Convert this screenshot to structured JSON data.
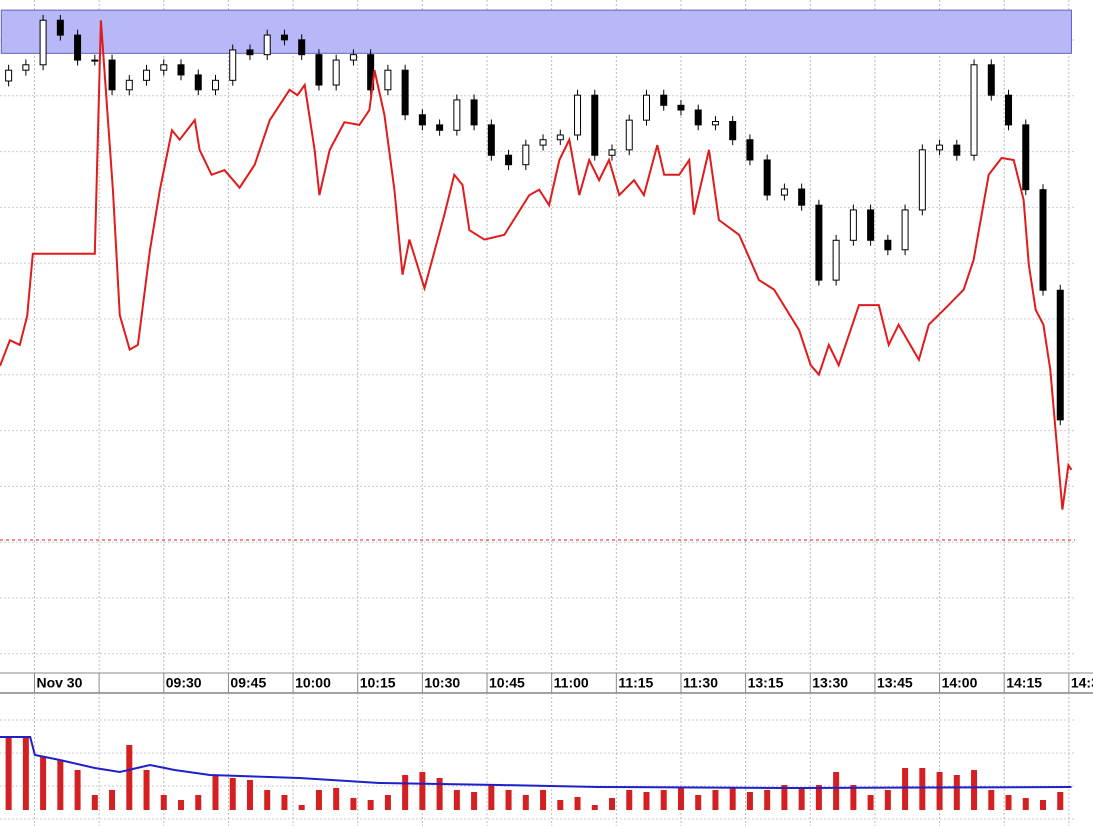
{
  "chart_data": [
    {
      "type": "candlestick",
      "xlim": [
        -8,
        245.6
      ],
      "ylim": [
        0,
        100
      ],
      "grid": true,
      "xticks": [
        {
          "value": 0,
          "label": "Nov 30"
        },
        {
          "value": 15,
          "label": null
        },
        {
          "value": 30,
          "label": "09:30"
        },
        {
          "value": 45,
          "label": "09:45"
        },
        {
          "value": 60,
          "label": "10:00"
        },
        {
          "value": 75,
          "label": "10:15"
        },
        {
          "value": 90,
          "label": "10:30"
        },
        {
          "value": 105,
          "label": "10:45"
        },
        {
          "value": 120,
          "label": "11:00"
        },
        {
          "value": 135,
          "label": "11:15"
        },
        {
          "value": 150,
          "label": "11:30"
        },
        {
          "value": 165,
          "label": "13:15"
        },
        {
          "value": 180,
          "label": "13:30"
        },
        {
          "value": 195,
          "label": "13:45"
        },
        {
          "value": 210,
          "label": "14:00"
        },
        {
          "value": 225,
          "label": "14:15"
        },
        {
          "value": 240,
          "label": "14:3"
        }
      ],
      "x": [
        -6,
        -2,
        2,
        6,
        10,
        14,
        18,
        22,
        26,
        30,
        34,
        38,
        42,
        46,
        50,
        54,
        58,
        62,
        66,
        70,
        74,
        78,
        82,
        86,
        90,
        94,
        98,
        102,
        106,
        110,
        114,
        118,
        122,
        126,
        130,
        134,
        138,
        142,
        146,
        150,
        154,
        158,
        162,
        166,
        170,
        174,
        178,
        182,
        186,
        190,
        194,
        198,
        202,
        206,
        210,
        214,
        218,
        222,
        226,
        230,
        234,
        238
      ],
      "open": [
        88.0,
        89.6,
        90.4,
        97.0,
        94.8,
        91.1,
        91.1,
        86.7,
        88.1,
        89.6,
        90.4,
        88.9,
        86.7,
        88.1,
        92.6,
        91.9,
        94.8,
        94.1,
        91.9,
        87.4,
        91.1,
        91.9,
        86.7,
        89.6,
        83.0,
        81.5,
        80.7,
        85.2,
        81.5,
        77.0,
        75.6,
        78.5,
        79.3,
        80.0,
        85.9,
        77.0,
        77.8,
        82.2,
        85.9,
        84.4,
        83.7,
        81.5,
        82.0,
        79.3,
        76.3,
        71.1,
        72.0,
        69.6,
        58.5,
        64.4,
        68.9,
        64.4,
        63.0,
        68.9,
        77.8,
        78.5,
        77.0,
        90.4,
        85.9,
        81.5,
        71.9,
        57.0
      ],
      "high": [
        90.4,
        91.2,
        97.8,
        97.8,
        95.6,
        91.9,
        91.9,
        88.9,
        90.4,
        91.2,
        91.2,
        89.7,
        88.9,
        93.4,
        93.4,
        95.6,
        95.6,
        94.9,
        92.7,
        91.9,
        92.7,
        92.7,
        90.4,
        90.4,
        83.8,
        82.3,
        86.0,
        86.0,
        82.3,
        77.8,
        79.3,
        80.1,
        80.8,
        86.7,
        86.7,
        78.6,
        83.0,
        86.7,
        86.7,
        85.2,
        84.5,
        82.8,
        82.8,
        80.1,
        77.1,
        72.8,
        72.8,
        70.4,
        65.2,
        69.7,
        69.7,
        65.2,
        69.7,
        78.6,
        79.3,
        79.3,
        91.2,
        91.2,
        86.7,
        82.3,
        72.7,
        57.8
      ],
      "low": [
        87.2,
        88.8,
        89.6,
        94.0,
        90.3,
        90.3,
        85.9,
        85.9,
        87.3,
        88.8,
        88.1,
        85.9,
        85.9,
        87.3,
        91.1,
        91.1,
        93.3,
        91.1,
        86.6,
        86.6,
        90.3,
        85.9,
        85.9,
        82.2,
        80.7,
        79.9,
        79.9,
        80.7,
        76.2,
        74.8,
        74.8,
        77.7,
        78.5,
        79.2,
        76.2,
        76.2,
        77.0,
        81.4,
        83.6,
        82.9,
        80.7,
        80.7,
        78.5,
        75.5,
        70.3,
        70.3,
        68.8,
        57.7,
        57.7,
        63.6,
        63.6,
        62.2,
        62.2,
        68.1,
        77.0,
        76.2,
        76.2,
        85.1,
        80.7,
        71.1,
        56.2,
        37.0
      ],
      "close": [
        89.6,
        90.4,
        97.0,
        94.8,
        91.1,
        91.1,
        86.7,
        88.1,
        89.6,
        90.4,
        88.9,
        86.7,
        88.1,
        92.6,
        91.9,
        94.8,
        94.1,
        91.9,
        87.4,
        91.1,
        91.9,
        86.7,
        89.6,
        83.0,
        81.5,
        80.7,
        85.2,
        81.5,
        77.0,
        75.6,
        78.5,
        79.3,
        80.0,
        85.9,
        77.0,
        77.8,
        82.2,
        85.9,
        84.4,
        83.7,
        81.5,
        82.0,
        79.3,
        76.3,
        71.1,
        72.0,
        69.6,
        58.5,
        64.4,
        68.9,
        64.4,
        63.0,
        68.9,
        77.8,
        78.5,
        77.0,
        90.4,
        85.9,
        81.5,
        71.9,
        57.0,
        37.8
      ],
      "zone": {
        "color": "#b8b8f8",
        "xlim": [
          -7.7,
          240.6
        ],
        "ylim": [
          92.1,
          98.5
        ]
      },
      "hline": 20,
      "overlay": {
        "type": "line",
        "color": "#e01b1b",
        "x": [
          -8.0,
          -5.7,
          -3.4,
          -1.7,
          -0.4,
          14.0,
          15.4,
          18.2,
          19.8,
          22.1,
          24.0,
          26.8,
          29.1,
          31.9,
          33.7,
          37.2,
          38.3,
          41.1,
          44.1,
          47.6,
          51.1,
          54.6,
          59.2,
          61.0,
          62.7,
          65.0,
          66.1,
          68.5,
          71.9,
          75.4,
          77.7,
          78.9,
          81.2,
          83.5,
          85.4,
          87.0,
          90.5,
          95.1,
          97.4,
          99.3,
          100.9,
          104.4,
          109.0,
          114.8,
          117.1,
          119.4,
          121.8,
          124.1,
          126.4,
          128.7,
          131.0,
          133.3,
          135.7,
          139.1,
          141.4,
          144.5,
          146.1,
          149.6,
          151.9,
          153.0,
          156.5,
          158.8,
          163.5,
          168.1,
          171.6,
          177.4,
          180.1,
          182.0,
          184.3,
          186.6,
          191.3,
          195.9,
          198.2,
          200.5,
          205.2,
          207.5,
          212.1,
          215.6,
          217.9,
          221.4,
          224.4,
          227.2,
          229.5,
          230.7,
          232.3,
          234.1,
          235.7,
          237.1,
          238.5,
          239.9,
          240.6
        ],
        "values": [
          45.8,
          49.6,
          48.9,
          53.2,
          62.4,
          62.4,
          97.0,
          71.9,
          53.3,
          48.2,
          48.9,
          63.0,
          71.9,
          80.7,
          79.3,
          82.2,
          77.8,
          74.1,
          74.8,
          72.2,
          75.6,
          82.2,
          86.7,
          85.9,
          87.4,
          77.8,
          71.1,
          77.8,
          81.9,
          81.5,
          83.7,
          89.6,
          83.0,
          71.9,
          59.3,
          64.5,
          57.3,
          68.2,
          74.1,
          72.6,
          65.9,
          64.5,
          65.2,
          71.1,
          71.9,
          69.6,
          76.3,
          79.3,
          71.1,
          76.3,
          73.3,
          76.3,
          71.1,
          73.3,
          71.1,
          78.5,
          74.1,
          74.1,
          76.3,
          68.2,
          77.8,
          67.4,
          65.2,
          58.5,
          57.1,
          51.1,
          45.9,
          44.5,
          48.9,
          45.9,
          54.8,
          54.8,
          48.9,
          51.9,
          46.7,
          51.9,
          54.8,
          57.1,
          61.5,
          74.1,
          76.6,
          76.3,
          70.4,
          60.8,
          54.1,
          51.9,
          45.2,
          34.8,
          24.5,
          31.1,
          30.4
        ]
      }
    },
    {
      "type": "bar",
      "color": "#d42020",
      "xlim": [
        -8,
        245.6
      ],
      "ylim": [
        0,
        110
      ],
      "x": [
        -6,
        -2,
        2,
        6,
        10,
        14,
        18,
        22,
        26,
        30,
        34,
        38,
        42,
        46,
        50,
        54,
        58,
        62,
        66,
        70,
        74,
        78,
        82,
        86,
        90,
        94,
        98,
        102,
        106,
        110,
        114,
        118,
        122,
        126,
        130,
        134,
        138,
        142,
        146,
        150,
        154,
        158,
        162,
        166,
        170,
        174,
        178,
        182,
        186,
        190,
        194,
        198,
        202,
        206,
        210,
        214,
        218,
        222,
        226,
        230,
        234,
        238
      ],
      "values": [
        72,
        72,
        53,
        50,
        40,
        15,
        20,
        65,
        40,
        15,
        10,
        15,
        35,
        32,
        30,
        20,
        15,
        5,
        20,
        22,
        12,
        10,
        15,
        35,
        38,
        32,
        20,
        18,
        25,
        20,
        15,
        20,
        10,
        13,
        5,
        12,
        20,
        18,
        20,
        22,
        15,
        20,
        22,
        18,
        20,
        25,
        22,
        25,
        38,
        25,
        15,
        20,
        42,
        42,
        38,
        35,
        40,
        20,
        15,
        12,
        10,
        18
      ],
      "overlay": {
        "type": "line",
        "color": "#2020c8",
        "x": [
          -8,
          -1.0,
          0.1,
          5.9,
          14,
          19.8,
          26.8,
          32.5,
          40.7,
          61.5,
          80,
          107.9,
          131,
          177.4,
          240.6
        ],
        "values": [
          73,
          73,
          55,
          50,
          42,
          38,
          45,
          40,
          35,
          32,
          27,
          25,
          23,
          22,
          23
        ]
      }
    }
  ]
}
